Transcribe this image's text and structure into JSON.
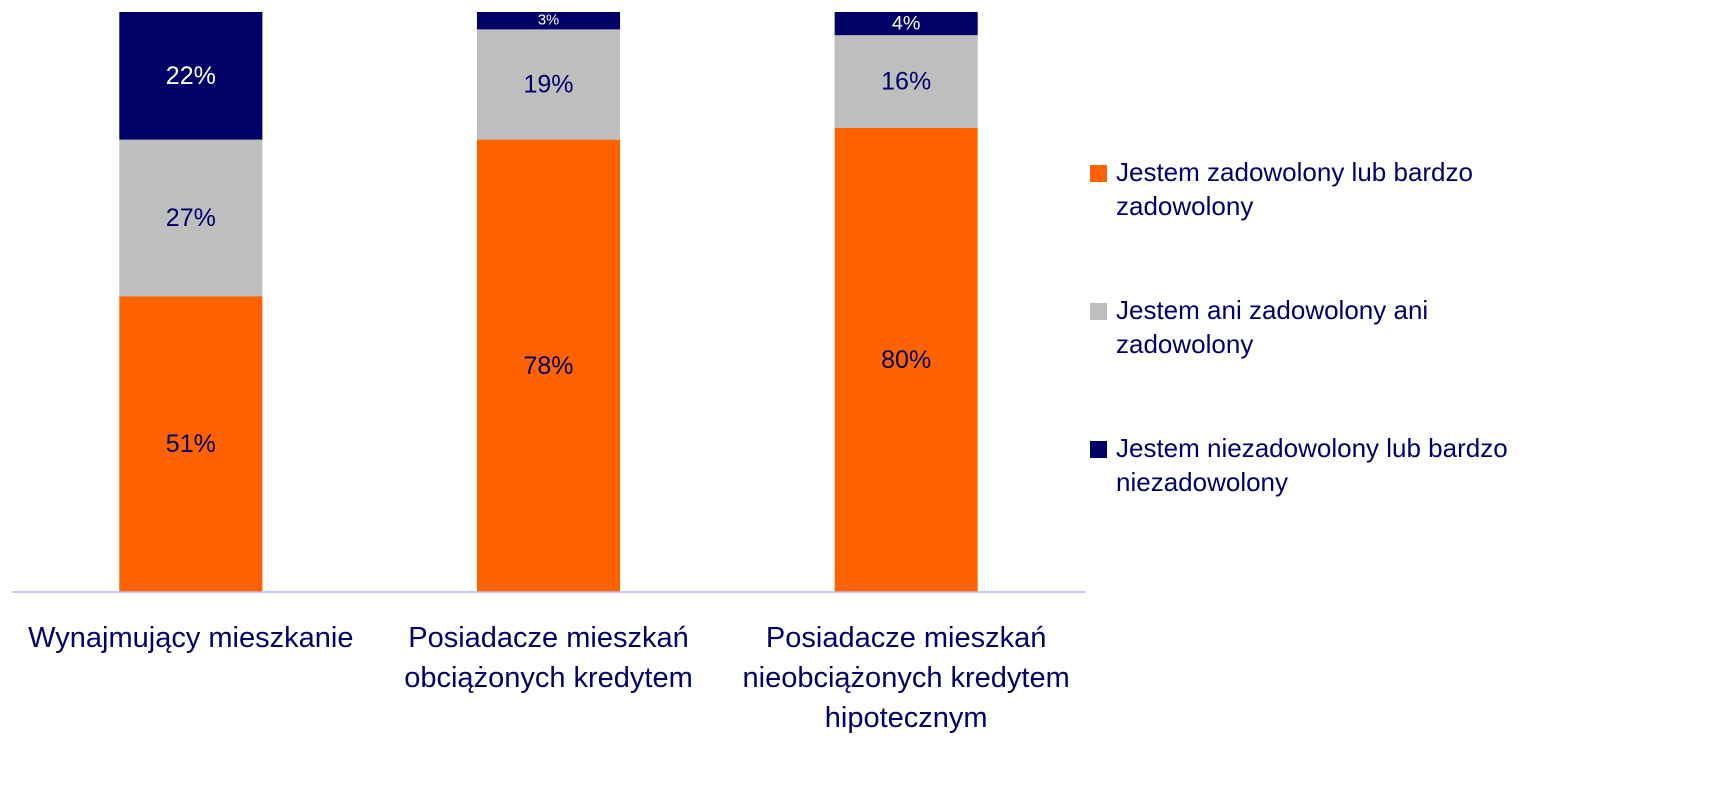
{
  "chart_data": {
    "type": "stacked_bar",
    "categories": [
      "Wynajmujący mieszkanie",
      "Posiadacze mieszkań obciążonych kredytem",
      "Posiadacze mieszkań nieobciążonych kredytem hipotecznym"
    ],
    "series": [
      {
        "name": "Jestem zadowolony lub bardzo zadowolony",
        "color": "#FF6200",
        "values": [
          51,
          78,
          80
        ],
        "value_labels": [
          "51%",
          "78%",
          "80%"
        ]
      },
      {
        "name": "Jestem ani zadowolony ani zadowolony",
        "color": "#BEBEBE",
        "values": [
          27,
          19,
          16
        ],
        "value_labels": [
          "27%",
          "19%",
          "16%"
        ]
      },
      {
        "name": "Jestem niezadowolony lub bardzo niezadowolony",
        "color": "#000066",
        "values": [
          22,
          3,
          4
        ],
        "value_labels": [
          "22%",
          "3%",
          "4%"
        ]
      }
    ],
    "ylim": [
      0,
      100
    ],
    "legend": "right"
  }
}
